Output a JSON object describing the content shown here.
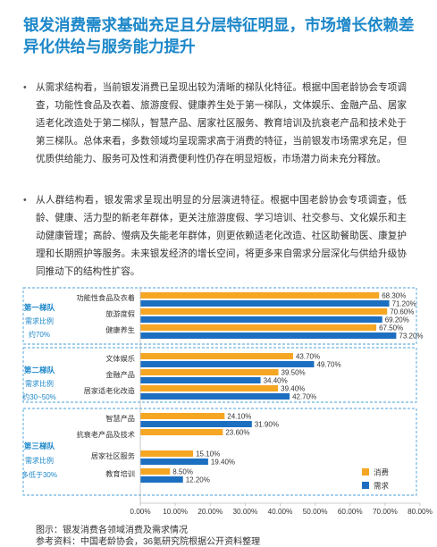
{
  "heading": "银发消费需求基础充足且分层特征明显，市场增长依赖差异化供给与服务能力提升",
  "paragraphs": [
    "从需求结构看，当前银发消费已呈现出较为清晰的梯队化特征。根据中国老龄协会专项调查，功能性食品及衣着、旅游度假、健康养生处于第一梯队，文体娱乐、金融产品、居家适老化改造处于第二梯队，智慧产品、居家社区服务、教育培训及抗衰老产品和技术处于第三梯队。总体来看，多数领域均呈现需求高于消费的特征，当前银发市场需求充足，但优质供给能力、服务可及性和消费便利性仍存在明显短板，市场潜力尚未充分释放。",
    "从人群结构看，银发需求呈现出明显的分层演进特征。根据中国老龄协会专项调查，低龄、健康、活力型的新老年群体，更关注旅游度假、学习培训、社交参与、文化娱乐和主动健康管理；高龄、慢病及失能老年群体，则更依赖适老化改造、社区助餐助医、康复护理和长期照护等服务。未来银发经济的增长空间，将更多来自需求分层深化与供给升级协同推动下的结构性扩容。"
  ],
  "caption": "图示：银发消费各领域消费及需求情况",
  "source": "参考资料：中国老龄协会，36氪研究院根据公开资料整理",
  "colors": {
    "consumption": "#f5a623",
    "demand": "#1c6fc0",
    "accent": "#1c87c9",
    "tier_border": "#4a9fd8"
  },
  "chart_data": {
    "type": "bar",
    "orientation": "horizontal",
    "categories": [
      "功能性食品及衣着",
      "旅游度假",
      "健康养生",
      "文体娱乐",
      "金融产品",
      "居家适老化改造",
      "智慧产品",
      "抗衰老产品及技术",
      "居家社区服务",
      "教育培训"
    ],
    "series": [
      {
        "name": "消费",
        "values": [
          68.3,
          70.6,
          67.5,
          43.7,
          39.5,
          39.4,
          24.1,
          23.6,
          15.1,
          8.5
        ]
      },
      {
        "name": "需求",
        "values": [
          71.2,
          69.2,
          73.2,
          49.7,
          34.4,
          42.7,
          31.9,
          null,
          19.4,
          12.2
        ]
      }
    ],
    "value_labels": {
      "消费": [
        "68.30%",
        "70.60%",
        "67.50%",
        "43.70%",
        "39.50%",
        "39.40%",
        "24.10%",
        "23.60%",
        "15.10%",
        "8.50%"
      ],
      "需求": [
        "71.20%",
        "69.20%",
        "73.20%",
        "49.70%",
        "34.40%",
        "42.70%",
        "31.90%",
        "",
        "19.40%",
        "12.20%"
      ]
    },
    "groups": [
      {
        "lines": [
          "第一梯队",
          "需求比例",
          "约70%"
        ],
        "count": 3
      },
      {
        "lines": [
          "第二梯队",
          "需求比例",
          "约30~50%"
        ],
        "count": 3
      },
      {
        "lines": [
          "第三梯队",
          "需求比例",
          "多低于30%"
        ],
        "count": 4
      }
    ],
    "xlim": [
      0,
      80
    ],
    "xticks": [
      "0.00%",
      "10.00%",
      "20.00%",
      "30.00%",
      "40.00%",
      "50.00%",
      "60.00%",
      "70.00%",
      "80.00%"
    ],
    "legend_position": "bottom-right",
    "grid": false
  }
}
